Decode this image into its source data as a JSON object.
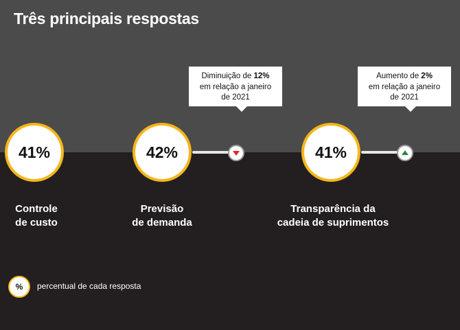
{
  "title": "Três principais respostas",
  "chart_data": {
    "type": "infographic",
    "unit": "%",
    "items": [
      {
        "value": "41%",
        "label_lines": [
          "Controle",
          "de custo"
        ],
        "change": null
      },
      {
        "value": "42%",
        "label_lines": [
          "Previsão",
          "de demanda"
        ],
        "change": {
          "direction": "down",
          "color": "#e0262c",
          "line1_prefix": "Diminuição de ",
          "line1_value": "12%",
          "line2": "em relação a janeiro",
          "line3": "de 2021"
        }
      },
      {
        "value": "41%",
        "label_lines": [
          "Transparência da",
          "cadeia de suprimentos"
        ],
        "change": {
          "direction": "up",
          "color": "#2e8540",
          "line1_prefix": "Aumento de ",
          "line1_value": "2%",
          "line2": "em relação a janeiro",
          "line3": "de 2021"
        }
      }
    ]
  },
  "legend": {
    "symbol": "%",
    "text": "percentual de cada resposta"
  },
  "colors": {
    "top_band": "#4b4b4b",
    "bottom_band": "#231f20",
    "circle_border": "#f5b61a"
  }
}
